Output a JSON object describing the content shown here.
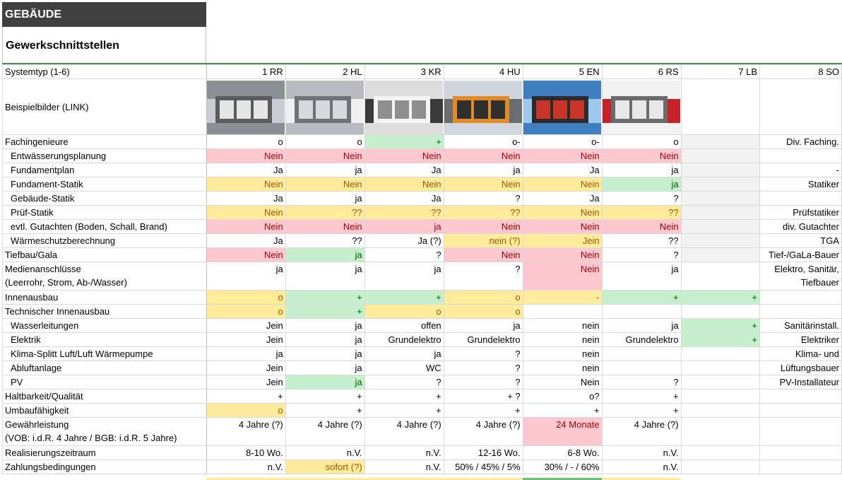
{
  "header": {
    "title": "GEBÄUDE",
    "subtitle": "Gewerkschnittstellen"
  },
  "columns": [
    "1 RR",
    "2 HL",
    "3 KR",
    "4 HU",
    "5 EN",
    "6 RS",
    "7 LB",
    "8 SO"
  ],
  "rows": [
    {
      "label": "Systemtyp (1-6)",
      "type": "colhead"
    },
    {
      "label": "Beispielbilder (LINK)",
      "type": "images"
    },
    {
      "label": "Fachingenieure",
      "sep": true,
      "cells": [
        {
          "v": "o"
        },
        {
          "v": "o"
        },
        {
          "v": "+",
          "c": "grn"
        },
        {
          "v": "o-"
        },
        {
          "v": "o-"
        },
        {
          "v": "o"
        },
        {
          "v": "",
          "c": "gry"
        },
        {
          "v": "Div. Faching."
        }
      ]
    },
    {
      "label": "Entwässerungsplanung",
      "indent": true,
      "cells": [
        {
          "v": "Nein",
          "c": "red"
        },
        {
          "v": "Nein",
          "c": "red"
        },
        {
          "v": "Nein",
          "c": "red"
        },
        {
          "v": "Nein",
          "c": "red"
        },
        {
          "v": "Nein",
          "c": "red"
        },
        {
          "v": "Nein",
          "c": "red"
        },
        {
          "v": "",
          "c": "gry"
        },
        {
          "v": ""
        }
      ]
    },
    {
      "label": "Fundamentplan",
      "indent": true,
      "cells": [
        {
          "v": "Ja"
        },
        {
          "v": "ja"
        },
        {
          "v": "Ja"
        },
        {
          "v": "ja"
        },
        {
          "v": "Ja"
        },
        {
          "v": "ja"
        },
        {
          "v": "",
          "c": "gry"
        },
        {
          "v": "-"
        }
      ]
    },
    {
      "label": "Fundament-Statik",
      "indent": true,
      "cells": [
        {
          "v": "Nein",
          "c": "yel"
        },
        {
          "v": "Nein",
          "c": "yel"
        },
        {
          "v": "Nein",
          "c": "yel"
        },
        {
          "v": "Nein",
          "c": "yel"
        },
        {
          "v": "Nein",
          "c": "yel"
        },
        {
          "v": "ja",
          "c": "grn"
        },
        {
          "v": "",
          "c": "gry"
        },
        {
          "v": "Statiker"
        }
      ]
    },
    {
      "label": "Gebäude-Statik",
      "indent": true,
      "cells": [
        {
          "v": "Ja"
        },
        {
          "v": "ja"
        },
        {
          "v": "Ja"
        },
        {
          "v": "?"
        },
        {
          "v": "Ja"
        },
        {
          "v": "?"
        },
        {
          "v": "",
          "c": "gry"
        },
        {
          "v": ""
        }
      ]
    },
    {
      "label": "Prüf-Statik",
      "indent": true,
      "cells": [
        {
          "v": "Nein",
          "c": "yel"
        },
        {
          "v": "??",
          "c": "yel"
        },
        {
          "v": "??",
          "c": "yel"
        },
        {
          "v": "??",
          "c": "yel"
        },
        {
          "v": "Nein",
          "c": "yel"
        },
        {
          "v": "??",
          "c": "yel"
        },
        {
          "v": "",
          "c": "gry"
        },
        {
          "v": "Prüfstatiker"
        }
      ]
    },
    {
      "label": "evtl. Gutachten (Boden, Schall, Brand)",
      "indent": true,
      "cells": [
        {
          "v": "Nein",
          "c": "red"
        },
        {
          "v": "Nein",
          "c": "red"
        },
        {
          "v": "ja",
          "c": "red"
        },
        {
          "v": "Nein",
          "c": "red"
        },
        {
          "v": "Nein",
          "c": "red"
        },
        {
          "v": "Nein",
          "c": "red"
        },
        {
          "v": "",
          "c": "gry"
        },
        {
          "v": "div. Gutachter"
        }
      ]
    },
    {
      "label": "Wärmeschutzberechnung",
      "indent": true,
      "cells": [
        {
          "v": "Ja"
        },
        {
          "v": "??"
        },
        {
          "v": "Ja (?)"
        },
        {
          "v": "nein (?)",
          "c": "yel"
        },
        {
          "v": "Jein",
          "c": "yel"
        },
        {
          "v": "??"
        },
        {
          "v": "",
          "c": "gry"
        },
        {
          "v": "TGA"
        }
      ]
    },
    {
      "label": "Tiefbau/Gala",
      "sep": true,
      "cells": [
        {
          "v": "Nein",
          "c": "red"
        },
        {
          "v": "ja",
          "c": "grn"
        },
        {
          "v": "?"
        },
        {
          "v": "Nein",
          "c": "red"
        },
        {
          "v": "Nein",
          "c": "red"
        },
        {
          "v": "?"
        },
        {
          "v": "",
          "c": "gry"
        },
        {
          "v": "Tief-/GaLa-Bauer"
        }
      ]
    },
    {
      "label": "Medienanschlüsse",
      "label2": "(Leerrohr, Strom, Ab-/Wasser)",
      "sep": true,
      "tall": true,
      "cells": [
        {
          "v": "ja"
        },
        {
          "v": "ja"
        },
        {
          "v": "ja"
        },
        {
          "v": "?"
        },
        {
          "v": "Nein",
          "c": "red"
        },
        {
          "v": "ja"
        },
        {
          "v": ""
        },
        {
          "v": "Elektro, Sanitär,",
          "v2": "Tiefbauer"
        }
      ]
    },
    {
      "label": "Innenausbau",
      "sep": true,
      "cells": [
        {
          "v": "o",
          "c": "yel"
        },
        {
          "v": "+",
          "c": "grn"
        },
        {
          "v": "+",
          "c": "grn"
        },
        {
          "v": "o",
          "c": "yel"
        },
        {
          "v": "-",
          "c": "yel"
        },
        {
          "v": "+",
          "c": "grn"
        },
        {
          "v": "+",
          "c": "grn"
        },
        {
          "v": ""
        }
      ]
    },
    {
      "label": "Technischer Innenausbau",
      "cells": [
        {
          "v": "o",
          "c": "yel"
        },
        {
          "v": "+",
          "c": "grn"
        },
        {
          "v": "o",
          "c": "yel"
        },
        {
          "v": "o",
          "c": "yel"
        },
        {
          "v": ""
        },
        {
          "v": ""
        },
        {
          "v": ""
        },
        {
          "v": ""
        }
      ]
    },
    {
      "label": "Wasserleitungen",
      "indent": true,
      "cells": [
        {
          "v": "Jein"
        },
        {
          "v": "ja"
        },
        {
          "v": "offen"
        },
        {
          "v": "ja"
        },
        {
          "v": "nein"
        },
        {
          "v": "ja"
        },
        {
          "v": "+",
          "c": "grn"
        },
        {
          "v": "Sanitärinstall."
        }
      ]
    },
    {
      "label": "Elektrik",
      "indent": true,
      "cells": [
        {
          "v": "Jein"
        },
        {
          "v": "ja"
        },
        {
          "v": "Grundelektro"
        },
        {
          "v": "Grundelektro"
        },
        {
          "v": "nein"
        },
        {
          "v": "Grundelektro"
        },
        {
          "v": "+",
          "c": "grn"
        },
        {
          "v": "Elektriker"
        }
      ]
    },
    {
      "label": "Klima-Splitt Luft/Luft Wärmepumpe",
      "indent": true,
      "cells": [
        {
          "v": "ja"
        },
        {
          "v": "ja"
        },
        {
          "v": "ja"
        },
        {
          "v": "?"
        },
        {
          "v": "nein"
        },
        {
          "v": ""
        },
        {
          "v": ""
        },
        {
          "v": "Klima- und"
        }
      ]
    },
    {
      "label": "Abluftanlage",
      "indent": true,
      "cells": [
        {
          "v": "Jein"
        },
        {
          "v": "ja"
        },
        {
          "v": "WC"
        },
        {
          "v": "?"
        },
        {
          "v": "nein"
        },
        {
          "v": ""
        },
        {
          "v": ""
        },
        {
          "v": "Lüftungsbauer"
        }
      ]
    },
    {
      "label": "PV",
      "indent": true,
      "cells": [
        {
          "v": "Jein"
        },
        {
          "v": "ja",
          "c": "grn"
        },
        {
          "v": "?"
        },
        {
          "v": "?"
        },
        {
          "v": "Nein"
        },
        {
          "v": "?"
        },
        {
          "v": ""
        },
        {
          "v": "PV-Installateur"
        }
      ]
    },
    {
      "label": "Haltbarkeit/Qualität",
      "sep": true,
      "cells": [
        {
          "v": "+"
        },
        {
          "v": "+"
        },
        {
          "v": "+"
        },
        {
          "v": "+ ?"
        },
        {
          "v": "o?"
        },
        {
          "v": "+"
        },
        {
          "v": ""
        },
        {
          "v": ""
        }
      ]
    },
    {
      "label": "Umbaufähigkeit",
      "sep": true,
      "cells": [
        {
          "v": "o",
          "c": "yel"
        },
        {
          "v": "+"
        },
        {
          "v": "+"
        },
        {
          "v": "+"
        },
        {
          "v": "+"
        },
        {
          "v": "+"
        },
        {
          "v": ""
        },
        {
          "v": ""
        }
      ]
    },
    {
      "label": "Gewährleistung",
      "label2": "(VOB: i.d.R. 4 Jahre / BGB: i.d.R. 5 Jahre)",
      "sep": true,
      "tall": true,
      "cells": [
        {
          "v": "4 Jahre (?)"
        },
        {
          "v": "4 Jahre (?)"
        },
        {
          "v": "4 Jahre (?)"
        },
        {
          "v": "4 Jahre (?)"
        },
        {
          "v": "24 Monate",
          "c": "red"
        },
        {
          "v": "4 Jahre (?)"
        },
        {
          "v": ""
        },
        {
          "v": ""
        }
      ]
    },
    {
      "label": "Realisierungszeitraum",
      "cells": [
        {
          "v": "8-10 Wo."
        },
        {
          "v": "n.V."
        },
        {
          "v": "n.V."
        },
        {
          "v": "12-16 Wo."
        },
        {
          "v": "6-8 Wo."
        },
        {
          "v": "n.V."
        },
        {
          "v": ""
        },
        {
          "v": ""
        }
      ]
    },
    {
      "label": "Zahlungsbedingungen",
      "sep": true,
      "cells": [
        {
          "v": "n.V."
        },
        {
          "v": "sofort (?)",
          "c": "yel"
        },
        {
          "v": "n.V."
        },
        {
          "v": "50% / 45% / 5%"
        },
        {
          "v": "30% / - / 60%"
        },
        {
          "v": "n.V."
        },
        {
          "v": ""
        },
        {
          "v": ""
        }
      ]
    }
  ],
  "colors": {
    "red_fill": "#ffc7ce",
    "yellow_fill": "#ffeb9c",
    "green_fill": "#c6efce",
    "header_dark": "#404040"
  },
  "images": [
    "showroom-photo-1",
    "showroom-photo-2",
    "showroom-photo-3",
    "showroom-photo-4",
    "showroom-photo-5",
    "showroom-photo-6"
  ]
}
